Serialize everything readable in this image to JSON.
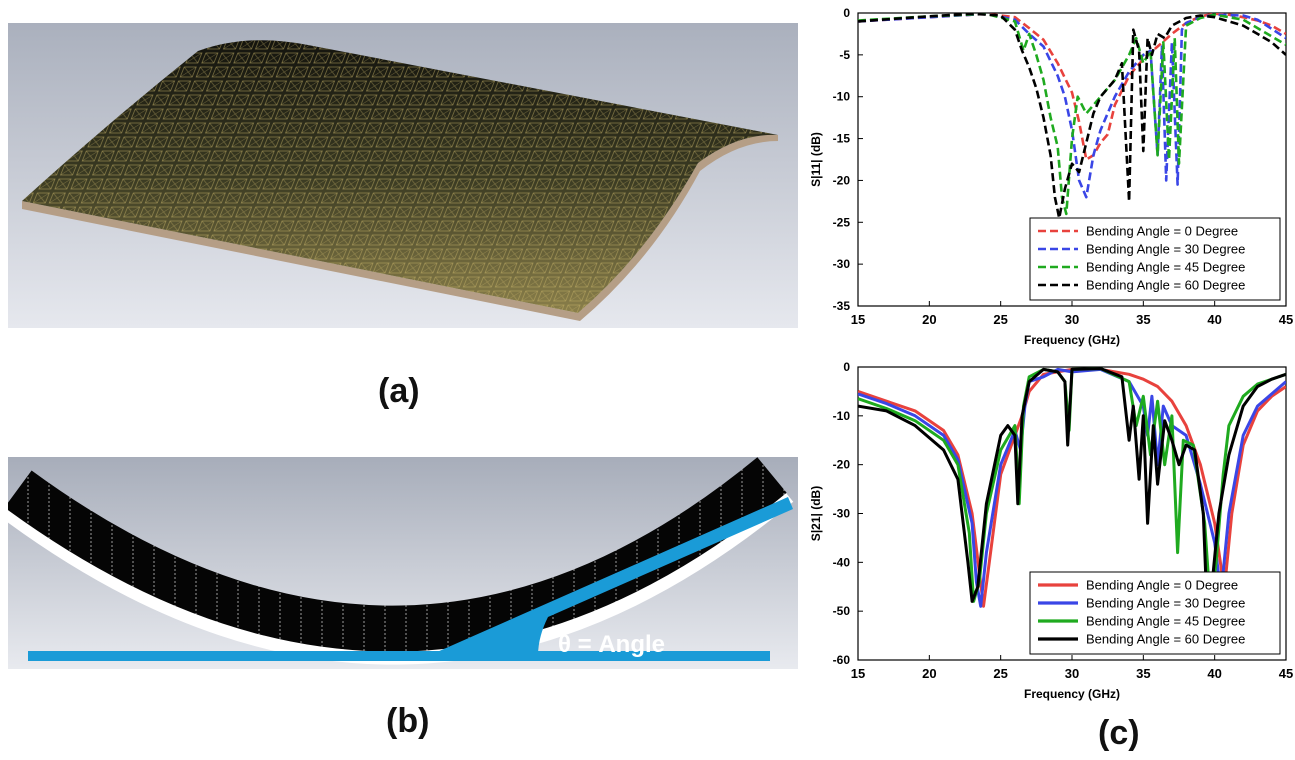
{
  "captions": {
    "a": "(a)",
    "b": "(b)",
    "c": "(c)"
  },
  "bend_label": "θ = Angle",
  "colors": {
    "red": "#e8423d",
    "blue": "#3a46e6",
    "green": "#1faa1f",
    "black": "#000000",
    "annotation": "#1a9bd7"
  },
  "chart_data": [
    {
      "type": "line",
      "style": "dashed",
      "xlabel": "Frequency (GHz)",
      "ylabel": "S|11| (dB)",
      "xlim": [
        15,
        45
      ],
      "ylim": [
        -35,
        0
      ],
      "xticks": [
        15,
        20,
        25,
        30,
        35,
        40,
        45
      ],
      "yticks": [
        0,
        -5,
        -10,
        -15,
        -20,
        -25,
        -30,
        -35
      ],
      "legend_position": "bottom-right",
      "series": [
        {
          "name": "Bending Angle = 0 Degree",
          "color": "#e8423d",
          "x": [
            15,
            20,
            24,
            26,
            27,
            28,
            29,
            30,
            30.5,
            31,
            31.5,
            32,
            32.5,
            33,
            34,
            35,
            36,
            37,
            38,
            39,
            40,
            41,
            42,
            43,
            44,
            45
          ],
          "y": [
            -1.0,
            -0.5,
            -0.1,
            -0.5,
            -1.8,
            -3.2,
            -6.0,
            -9.5,
            -13.0,
            -17.5,
            -17.0,
            -15.5,
            -14.5,
            -11.0,
            -7.5,
            -5.5,
            -4.0,
            -2.5,
            -1.2,
            -0.4,
            -0.1,
            -0.2,
            -0.5,
            -0.9,
            -1.5,
            -2.5
          ]
        },
        {
          "name": "Bending Angle = 30 Degree",
          "color": "#3a46e6",
          "x": [
            15,
            20,
            24,
            26,
            27,
            28,
            29,
            29.5,
            30,
            30.5,
            31,
            31.5,
            32,
            33,
            34,
            35,
            35.5,
            36,
            36.3,
            36.6,
            37,
            37.4,
            37.7,
            38,
            39,
            40,
            42,
            43,
            45
          ],
          "y": [
            -1.0,
            -0.5,
            -0.1,
            -0.8,
            -2.5,
            -4.0,
            -7.5,
            -10.0,
            -14.0,
            -20.0,
            -22.0,
            -17.0,
            -14.0,
            -10.0,
            -7.0,
            -5.0,
            -4.5,
            -17.0,
            -4.0,
            -20.0,
            -3.5,
            -20.5,
            -2.0,
            -1.2,
            -0.5,
            -0.2,
            -0.3,
            -0.8,
            -3.0
          ]
        },
        {
          "name": "Bending Angle = 45 Degree",
          "color": "#1faa1f",
          "x": [
            15,
            20,
            24,
            26,
            26.6,
            27,
            27.5,
            28,
            28.5,
            29,
            29.3,
            29.6,
            30,
            30.4,
            31,
            32,
            33,
            34,
            34.5,
            35,
            35.5,
            36,
            36.4,
            36.8,
            37.2,
            37.5,
            38,
            39,
            40,
            42,
            45
          ],
          "y": [
            -0.9,
            -0.4,
            -0.1,
            -1.0,
            -4.5,
            -2.5,
            -5.0,
            -8.0,
            -12.5,
            -16.0,
            -22.0,
            -24.0,
            -15.0,
            -10.0,
            -12.0,
            -10.0,
            -8.0,
            -5.0,
            -3.0,
            -6.0,
            -4.5,
            -17.0,
            -3.5,
            -17.5,
            -3.0,
            -18.0,
            -1.5,
            -0.6,
            -0.2,
            -0.8,
            -3.8
          ]
        },
        {
          "name": "Bending Angle = 60 Degree",
          "color": "#000000",
          "x": [
            15,
            20,
            23,
            25,
            26,
            26.5,
            27,
            27.5,
            28,
            28.5,
            28.8,
            29.1,
            29.5,
            30,
            30.5,
            31,
            31.5,
            32,
            33,
            33.5,
            34,
            34.3,
            34.7,
            35,
            35.3,
            35.6,
            36,
            36.5,
            37,
            38,
            39,
            40,
            42,
            43,
            44,
            45
          ],
          "y": [
            -1.0,
            -0.4,
            -0.1,
            -0.3,
            -2.0,
            -4.5,
            -6.5,
            -9.0,
            -12.5,
            -17.0,
            -22.0,
            -24.5,
            -21.0,
            -18.0,
            -19.0,
            -15.5,
            -12.0,
            -10.0,
            -8.0,
            -6.0,
            -22.5,
            -2.0,
            -4.5,
            -16.5,
            -3.0,
            -5.0,
            -2.5,
            -3.0,
            -1.5,
            -0.6,
            -0.3,
            -0.5,
            -1.5,
            -2.5,
            -3.5,
            -5.0
          ]
        }
      ]
    },
    {
      "type": "line",
      "style": "solid",
      "xlabel": "Frequency (GHz)",
      "ylabel": "S|21| (dB)",
      "xlim": [
        15,
        45
      ],
      "ylim": [
        -60,
        0
      ],
      "xticks": [
        15,
        20,
        25,
        30,
        35,
        40,
        45
      ],
      "yticks": [
        0,
        -10,
        -20,
        -30,
        -40,
        -50,
        -60
      ],
      "legend_position": "bottom-right",
      "series": [
        {
          "name": "Bending Angle = 0 Degree",
          "color": "#e8423d",
          "x": [
            15,
            17,
            19,
            21,
            22,
            23,
            23.5,
            23.8,
            24.2,
            25,
            26,
            26.5,
            27,
            28,
            30,
            32,
            34,
            35,
            36,
            37,
            38,
            39,
            40,
            40.5,
            40.8,
            41.2,
            42,
            43,
            44,
            45
          ],
          "y": [
            -5,
            -7,
            -9,
            -13,
            -18,
            -30,
            -42,
            -49,
            -40,
            -22,
            -14,
            -10,
            -5,
            -1.5,
            -0.5,
            -0.5,
            -1.5,
            -2.5,
            -4,
            -7,
            -12,
            -20,
            -32,
            -42,
            -42,
            -30,
            -16,
            -9,
            -6,
            -4
          ]
        },
        {
          "name": "Bending Angle = 30 Degree",
          "color": "#3a46e6",
          "x": [
            15,
            17,
            19,
            21,
            22,
            23,
            23.3,
            23.6,
            24,
            25,
            26,
            26.4,
            26.7,
            27,
            28,
            29,
            30,
            32,
            34,
            35,
            35.3,
            35.6,
            36,
            36.4,
            37,
            38,
            39,
            40,
            40.3,
            40.6,
            41,
            42,
            43,
            44,
            45
          ],
          "y": [
            -5.5,
            -7.5,
            -10,
            -14,
            -19,
            -32,
            -44,
            -49,
            -38,
            -20,
            -13,
            -17,
            -8,
            -3,
            -2,
            -0.5,
            -1,
            -0.5,
            -3,
            -8,
            -14,
            -6,
            -20,
            -8,
            -12,
            -14,
            -24,
            -36,
            -43,
            -42,
            -30,
            -14,
            -8,
            -5.5,
            -3
          ]
        },
        {
          "name": "Bending Angle = 45 Degree",
          "color": "#1faa1f",
          "x": [
            15,
            17,
            19,
            21,
            22,
            22.8,
            23.1,
            23.5,
            24,
            25,
            26,
            26.3,
            26.6,
            27,
            28,
            29,
            29.5,
            29.8,
            30,
            32,
            34,
            34.5,
            35,
            35.5,
            36,
            36.5,
            37,
            37.4,
            37.8,
            38.5,
            39.3,
            39.7,
            40.1,
            40.6,
            41,
            42,
            43,
            45
          ],
          "y": [
            -6.5,
            -8.5,
            -11,
            -15,
            -20,
            -34,
            -48,
            -44,
            -30,
            -17,
            -12,
            -28,
            -8,
            -2,
            -0.5,
            -1,
            -3,
            -13,
            -0.5,
            -0.3,
            -3,
            -12,
            -6,
            -18,
            -7,
            -20,
            -10,
            -38,
            -15,
            -16,
            -32,
            -49,
            -40,
            -22,
            -12,
            -6,
            -3.5,
            -1.5
          ]
        },
        {
          "name": "Bending Angle = 60 Degree",
          "color": "#000000",
          "x": [
            15,
            17,
            19,
            21,
            22,
            22.7,
            23,
            23.4,
            24,
            25,
            25.5,
            26,
            26.2,
            26.5,
            27,
            28,
            29,
            29.5,
            29.7,
            30,
            32,
            33.5,
            34,
            34.3,
            34.7,
            35,
            35.3,
            35.7,
            36,
            36.5,
            37,
            37.5,
            38,
            38.6,
            39.2,
            39.5,
            39.8,
            40.3,
            41,
            42,
            43,
            44,
            45
          ],
          "y": [
            -8,
            -9,
            -12,
            -17,
            -23,
            -40,
            -48,
            -45,
            -28,
            -14,
            -12,
            -14,
            -28,
            -10,
            -3,
            -0.5,
            -1,
            -3,
            -16,
            -0.5,
            -0.3,
            -2,
            -15,
            -8,
            -23,
            -10,
            -32,
            -12,
            -24,
            -11,
            -15,
            -20,
            -16,
            -17,
            -30,
            -52,
            -45,
            -30,
            -18,
            -8,
            -4,
            -2.5,
            -1.5
          ]
        }
      ]
    }
  ]
}
